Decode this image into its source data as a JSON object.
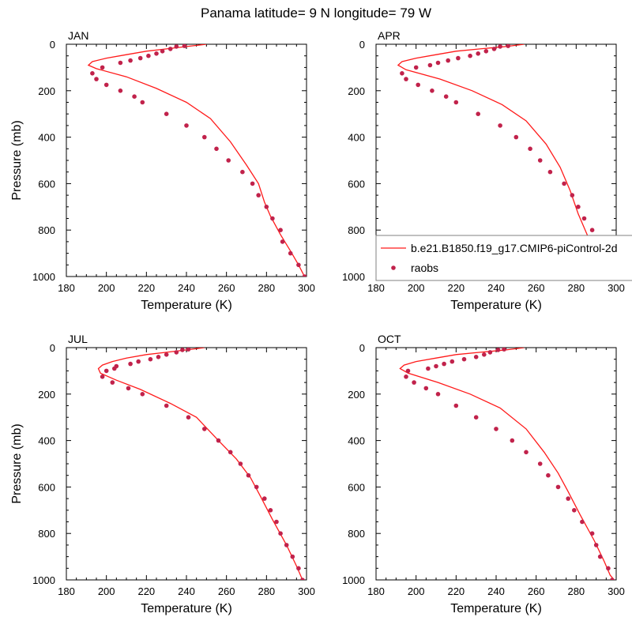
{
  "figure": {
    "title": "Panama  latitude= 9 N longitude= 79 W"
  },
  "colors": {
    "model_line": "#ff1a1a",
    "obs_marker": "#c1224b",
    "axis": "#000000",
    "legend_border": "#808080"
  },
  "legend": {
    "entries": [
      {
        "label": "b.e21.B1850.f19_g17.CMIP6-piControl-2d",
        "symbol": "line"
      },
      {
        "label": "raobs",
        "symbol": "dot"
      }
    ]
  },
  "chart_data": [
    {
      "type": "line",
      "panel": "JAN",
      "xlabel": "Temperature (K)",
      "ylabel": "Pressure (mb)",
      "xlim": [
        180,
        300
      ],
      "ylim": [
        1000,
        0
      ],
      "xticks": [
        180,
        200,
        220,
        240,
        260,
        280,
        300
      ],
      "yticks": [
        0,
        200,
        400,
        600,
        800,
        1000
      ],
      "grid": false,
      "legend": false,
      "series": [
        {
          "name": "b.e21.B1850.f19_g17.CMIP6-piControl-2d",
          "kind": "line",
          "points": [
            [
              250,
              0
            ],
            [
              240,
              10
            ],
            [
              230,
              20
            ],
            [
              220,
              30
            ],
            [
              210,
              45
            ],
            [
              200,
              60
            ],
            [
              193,
              75
            ],
            [
              191,
              90
            ],
            [
              195,
              105
            ],
            [
              210,
              140
            ],
            [
              225,
              190
            ],
            [
              240,
              250
            ],
            [
              252,
              320
            ],
            [
              262,
              420
            ],
            [
              270,
              520
            ],
            [
              276,
              600
            ],
            [
              279,
              680
            ],
            [
              282,
              740
            ],
            [
              287,
              820
            ],
            [
              292,
              890
            ],
            [
              296,
              950
            ],
            [
              299,
              1000
            ]
          ]
        },
        {
          "name": "raobs",
          "kind": "scatter",
          "points": [
            [
              239,
              7
            ],
            [
              235,
              10
            ],
            [
              232,
              20
            ],
            [
              228,
              30
            ],
            [
              225,
              40
            ],
            [
              221,
              50
            ],
            [
              217,
              60
            ],
            [
              212,
              70
            ],
            [
              207,
              80
            ],
            [
              198,
              100
            ],
            [
              193,
              125
            ],
            [
              195,
              150
            ],
            [
              200,
              175
            ],
            [
              207,
              200
            ],
            [
              214,
              225
            ],
            [
              218,
              250
            ],
            [
              230,
              300
            ],
            [
              240,
              350
            ],
            [
              249,
              400
            ],
            [
              255,
              450
            ],
            [
              261,
              500
            ],
            [
              268,
              550
            ],
            [
              273,
              600
            ],
            [
              276,
              650
            ],
            [
              280,
              700
            ],
            [
              283,
              750
            ],
            [
              287,
              800
            ],
            [
              288,
              850
            ],
            [
              292,
              900
            ],
            [
              296,
              950
            ],
            [
              299,
              1000
            ]
          ]
        }
      ]
    },
    {
      "type": "line",
      "panel": "APR",
      "xlabel": "Temperature (K)",
      "ylabel": "",
      "xlim": [
        180,
        300
      ],
      "ylim": [
        1000,
        0
      ],
      "xticks": [
        180,
        200,
        220,
        240,
        260,
        280,
        300
      ],
      "yticks": [
        0,
        200,
        400,
        600,
        800,
        1000
      ],
      "grid": false,
      "legend": true,
      "series": [
        {
          "name": "b.e21.B1850.f19_g17.CMIP6-piControl-2d",
          "kind": "line",
          "points": [
            [
              254,
              0
            ],
            [
              245,
              10
            ],
            [
              232,
              20
            ],
            [
              220,
              30
            ],
            [
              210,
              45
            ],
            [
              200,
              60
            ],
            [
              193,
              75
            ],
            [
              191,
              90
            ],
            [
              195,
              110
            ],
            [
              212,
              150
            ],
            [
              228,
              200
            ],
            [
              243,
              260
            ],
            [
              255,
              330
            ],
            [
              265,
              430
            ],
            [
              272,
              530
            ],
            [
              277,
              630
            ],
            [
              281,
              730
            ],
            [
              286,
              830
            ],
            [
              292,
              920
            ],
            [
              297,
              970
            ],
            [
              300,
              1000
            ]
          ]
        },
        {
          "name": "raobs",
          "kind": "scatter",
          "points": [
            [
              246,
              7
            ],
            [
              242,
              10
            ],
            [
              239,
              20
            ],
            [
              235,
              30
            ],
            [
              231,
              40
            ],
            [
              227,
              50
            ],
            [
              221,
              60
            ],
            [
              216,
              70
            ],
            [
              211,
              80
            ],
            [
              207,
              90
            ],
            [
              200,
              100
            ],
            [
              193,
              125
            ],
            [
              195,
              150
            ],
            [
              201,
              175
            ],
            [
              208,
              200
            ],
            [
              215,
              225
            ],
            [
              220,
              250
            ],
            [
              231,
              300
            ],
            [
              242,
              350
            ],
            [
              250,
              400
            ],
            [
              257,
              450
            ],
            [
              262,
              500
            ],
            [
              267,
              550
            ],
            [
              274,
              600
            ],
            [
              278,
              650
            ],
            [
              281,
              700
            ],
            [
              284,
              750
            ],
            [
              288,
              800
            ],
            [
              290,
              850
            ],
            [
              295,
              900
            ],
            [
              299,
              1000
            ]
          ]
        }
      ]
    },
    {
      "type": "line",
      "panel": "JUL",
      "xlabel": "Temperature (K)",
      "ylabel": "Pressure (mb)",
      "xlim": [
        180,
        300
      ],
      "ylim": [
        1000,
        0
      ],
      "xticks": [
        180,
        200,
        220,
        240,
        260,
        280,
        300
      ],
      "yticks": [
        0,
        200,
        400,
        600,
        800,
        1000
      ],
      "grid": false,
      "legend": false,
      "series": [
        {
          "name": "b.e21.B1850.f19_g17.CMIP6-piControl-2d",
          "kind": "line",
          "points": [
            [
              249,
              0
            ],
            [
              240,
              10
            ],
            [
              230,
              20
            ],
            [
              220,
              30
            ],
            [
              210,
              45
            ],
            [
              203,
              60
            ],
            [
              198,
              75
            ],
            [
              196,
              90
            ],
            [
              197,
              110
            ],
            [
              205,
              140
            ],
            [
              217,
              180
            ],
            [
              232,
              240
            ],
            [
              245,
              300
            ],
            [
              256,
              400
            ],
            [
              265,
              480
            ],
            [
              272,
              560
            ],
            [
              277,
              640
            ],
            [
              283,
              740
            ],
            [
              290,
              850
            ],
            [
              295,
              940
            ],
            [
              298,
              1000
            ]
          ]
        },
        {
          "name": "raobs",
          "kind": "scatter",
          "points": [
            [
              241,
              7
            ],
            [
              238,
              10
            ],
            [
              235,
              20
            ],
            [
              230,
              30
            ],
            [
              226,
              40
            ],
            [
              222,
              50
            ],
            [
              216,
              60
            ],
            [
              212,
              70
            ],
            [
              205,
              80
            ],
            [
              204,
              90
            ],
            [
              200,
              100
            ],
            [
              198,
              125
            ],
            [
              203,
              150
            ],
            [
              211,
              175
            ],
            [
              218,
              200
            ],
            [
              230,
              250
            ],
            [
              241,
              300
            ],
            [
              249,
              350
            ],
            [
              256,
              400
            ],
            [
              262,
              450
            ],
            [
              267,
              500
            ],
            [
              271,
              550
            ],
            [
              275,
              600
            ],
            [
              279,
              650
            ],
            [
              282,
              700
            ],
            [
              285,
              750
            ],
            [
              287,
              800
            ],
            [
              290,
              850
            ],
            [
              293,
              900
            ],
            [
              296,
              950
            ],
            [
              298,
              1000
            ]
          ]
        }
      ]
    },
    {
      "type": "line",
      "panel": "OCT",
      "xlabel": "Temperature (K)",
      "ylabel": "",
      "xlim": [
        180,
        300
      ],
      "ylim": [
        1000,
        0
      ],
      "xticks": [
        180,
        200,
        220,
        240,
        260,
        280,
        300
      ],
      "yticks": [
        0,
        200,
        400,
        600,
        800,
        1000
      ],
      "grid": false,
      "legend": false,
      "series": [
        {
          "name": "b.e21.B1850.f19_g17.CMIP6-piControl-2d",
          "kind": "line",
          "points": [
            [
              254,
              0
            ],
            [
              245,
              10
            ],
            [
              232,
              20
            ],
            [
              220,
              30
            ],
            [
              210,
              45
            ],
            [
              200,
              60
            ],
            [
              194,
              75
            ],
            [
              192,
              90
            ],
            [
              196,
              110
            ],
            [
              211,
              150
            ],
            [
              227,
              200
            ],
            [
              242,
              260
            ],
            [
              255,
              350
            ],
            [
              264,
              450
            ],
            [
              271,
              540
            ],
            [
              276,
              620
            ],
            [
              282,
              720
            ],
            [
              289,
              830
            ],
            [
              294,
              920
            ],
            [
              297,
              980
            ],
            [
              299,
              1000
            ]
          ]
        },
        {
          "name": "raobs",
          "kind": "scatter",
          "points": [
            [
              244,
              7
            ],
            [
              241,
              10
            ],
            [
              237,
              20
            ],
            [
              234,
              30
            ],
            [
              230,
              40
            ],
            [
              224,
              50
            ],
            [
              218,
              60
            ],
            [
              214,
              70
            ],
            [
              210,
              80
            ],
            [
              206,
              90
            ],
            [
              196,
              100
            ],
            [
              195,
              125
            ],
            [
              199,
              150
            ],
            [
              205,
              175
            ],
            [
              211,
              200
            ],
            [
              220,
              250
            ],
            [
              230,
              300
            ],
            [
              240,
              350
            ],
            [
              248,
              400
            ],
            [
              255,
              450
            ],
            [
              262,
              500
            ],
            [
              266,
              550
            ],
            [
              271,
              600
            ],
            [
              276,
              650
            ],
            [
              279,
              700
            ],
            [
              283,
              750
            ],
            [
              288,
              800
            ],
            [
              290,
              850
            ],
            [
              292,
              900
            ],
            [
              296,
              950
            ],
            [
              298,
              1000
            ]
          ]
        }
      ]
    }
  ]
}
